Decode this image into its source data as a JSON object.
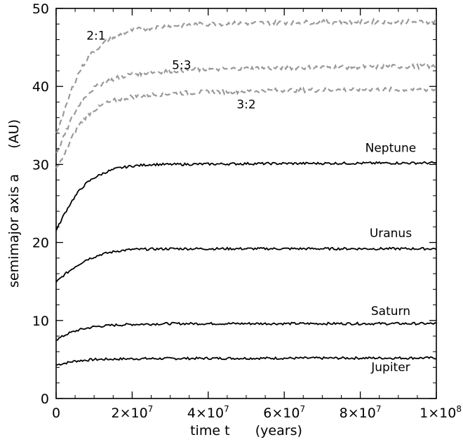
{
  "chart_data": {
    "type": "line",
    "xlabel": "time t      (years)",
    "ylabel": "semimajor axis a      (AU)",
    "xlim": [
      0,
      100000000.0
    ],
    "ylim": [
      0,
      50
    ],
    "grid": false,
    "legend": "none",
    "x_ticks": [
      {
        "value": 0,
        "label": "0"
      },
      {
        "value": 20000000.0,
        "label": "2×10",
        "exp": "7"
      },
      {
        "value": 40000000.0,
        "label": "4×10",
        "exp": "7"
      },
      {
        "value": 60000000.0,
        "label": "6×10",
        "exp": "7"
      },
      {
        "value": 80000000.0,
        "label": "8×10",
        "exp": "7"
      },
      {
        "value": 100000000.0,
        "label": "1×10",
        "exp": "8"
      }
    ],
    "y_ticks": [
      0,
      10,
      20,
      30,
      40,
      50
    ],
    "series": [
      {
        "name": "Jupiter",
        "style": "solid",
        "color": "#000000",
        "points": [
          [
            0,
            4.3
          ],
          [
            5000000.0,
            4.8
          ],
          [
            10000000.0,
            5.0
          ],
          [
            20000000.0,
            5.1
          ],
          [
            40000000.0,
            5.15
          ],
          [
            100000000.0,
            5.2
          ]
        ]
      },
      {
        "name": "Saturn",
        "style": "solid",
        "color": "#000000",
        "points": [
          [
            0,
            7.5
          ],
          [
            3000000.0,
            8.3
          ],
          [
            6000000.0,
            8.8
          ],
          [
            10000000.0,
            9.2
          ],
          [
            15000000.0,
            9.4
          ],
          [
            20000000.0,
            9.5
          ],
          [
            30000000.0,
            9.6
          ],
          [
            50000000.0,
            9.6
          ],
          [
            100000000.0,
            9.6
          ]
        ]
      },
      {
        "name": "Uranus",
        "style": "solid",
        "color": "#000000",
        "points": [
          [
            0,
            14.9
          ],
          [
            2000000.0,
            15.8
          ],
          [
            5000000.0,
            16.9
          ],
          [
            8000000.0,
            17.8
          ],
          [
            12000000.0,
            18.5
          ],
          [
            16000000.0,
            18.9
          ],
          [
            20000000.0,
            19.1
          ],
          [
            30000000.0,
            19.2
          ],
          [
            50000000.0,
            19.2
          ],
          [
            100000000.0,
            19.2
          ]
        ]
      },
      {
        "name": "Neptune",
        "style": "solid",
        "color": "#000000",
        "points": [
          [
            0,
            21.5
          ],
          [
            2000000.0,
            23.5
          ],
          [
            4000000.0,
            25.2
          ],
          [
            6000000.0,
            26.6
          ],
          [
            8000000.0,
            27.6
          ],
          [
            10000000.0,
            28.3
          ],
          [
            13000000.0,
            29.0
          ],
          [
            16000000.0,
            29.5
          ],
          [
            20000000.0,
            29.8
          ],
          [
            25000000.0,
            30.0
          ],
          [
            30000000.0,
            30.0
          ],
          [
            50000000.0,
            30.1
          ],
          [
            100000000.0,
            30.2
          ]
        ]
      },
      {
        "name": "3:2",
        "style": "dashed",
        "color": "#999999",
        "points": [
          [
            0,
            29.5
          ],
          [
            2000000.0,
            31.0
          ],
          [
            4000000.0,
            33.3
          ],
          [
            6000000.0,
            35.0
          ],
          [
            8000000.0,
            36.2
          ],
          [
            10000000.0,
            37.0
          ],
          [
            13000000.0,
            37.8
          ],
          [
            16000000.0,
            38.3
          ],
          [
            20000000.0,
            38.7
          ],
          [
            30000000.0,
            39.1
          ],
          [
            40000000.0,
            39.3
          ],
          [
            60000000.0,
            39.5
          ],
          [
            80000000.0,
            39.6
          ],
          [
            100000000.0,
            39.6
          ]
        ]
      },
      {
        "name": "5:3",
        "style": "dashed",
        "color": "#999999",
        "points": [
          [
            0,
            31.5
          ],
          [
            2000000.0,
            33.5
          ],
          [
            4000000.0,
            35.8
          ],
          [
            6000000.0,
            37.6
          ],
          [
            8000000.0,
            38.9
          ],
          [
            10000000.0,
            39.8
          ],
          [
            13000000.0,
            40.6
          ],
          [
            16000000.0,
            41.1
          ],
          [
            20000000.0,
            41.6
          ],
          [
            30000000.0,
            42.0
          ],
          [
            40000000.0,
            42.2
          ],
          [
            60000000.0,
            42.4
          ],
          [
            80000000.0,
            42.5
          ],
          [
            100000000.0,
            42.6
          ]
        ]
      },
      {
        "name": "2:1",
        "style": "dashed",
        "color": "#999999",
        "points": [
          [
            0,
            34.0
          ],
          [
            2000000.0,
            36.5
          ],
          [
            4000000.0,
            39.5
          ],
          [
            6000000.0,
            41.8
          ],
          [
            8000000.0,
            43.4
          ],
          [
            10000000.0,
            44.6
          ],
          [
            13000000.0,
            45.7
          ],
          [
            16000000.0,
            46.5
          ],
          [
            20000000.0,
            47.2
          ],
          [
            30000000.0,
            47.8
          ],
          [
            40000000.0,
            48.0
          ],
          [
            60000000.0,
            48.2
          ],
          [
            80000000.0,
            48.3
          ],
          [
            100000000.0,
            48.3
          ]
        ]
      }
    ],
    "annotations": [
      {
        "text": "2:1",
        "x": 10500000.0,
        "y": 46.0
      },
      {
        "text": "5:3",
        "x": 33000000.0,
        "y": 42.2
      },
      {
        "text": "3:2",
        "x": 50000000.0,
        "y": 37.2
      },
      {
        "text": "Neptune",
        "x": 88000000.0,
        "y": 31.6
      },
      {
        "text": "Uranus",
        "x": 88000000.0,
        "y": 20.7
      },
      {
        "text": "Saturn",
        "x": 88000000.0,
        "y": 10.7
      },
      {
        "text": "Jupiter",
        "x": 88000000.0,
        "y": 3.5
      }
    ]
  }
}
